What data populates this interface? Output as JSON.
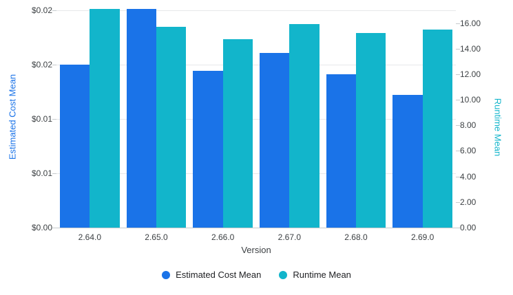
{
  "chart_data": {
    "type": "bar",
    "title": "",
    "xlabel": "Version",
    "categories": [
      "2.64.0",
      "2.65.0",
      "2.66.0",
      "2.67.0",
      "2.68.0",
      "2.69.0"
    ],
    "series": [
      {
        "name": "Estimated Cost Mean",
        "axis": "left",
        "color": "#1a73e8",
        "values": [
          0.015,
          0.0201,
          0.0144,
          0.0161,
          0.0141,
          0.0122
        ]
      },
      {
        "name": "Runtime Mean",
        "axis": "right",
        "color": "#12b5cb",
        "values": [
          17.1,
          15.7,
          14.75,
          15.95,
          15.2,
          15.5
        ]
      }
    ],
    "y_left": {
      "title": "Estimated Cost Mean",
      "color": "#1a73e8",
      "range": [
        0,
        0.02
      ],
      "tick_values": [
        0,
        0.005,
        0.01,
        0.015,
        0.02
      ],
      "tick_labels": [
        "$0.00",
        "$0.01",
        "$0.01",
        "$0.02",
        "$0.02"
      ]
    },
    "y_right": {
      "title": "Runtime Mean",
      "color": "#12b5cb",
      "range": [
        0,
        17
      ],
      "tick_values": [
        0,
        2,
        4,
        6,
        8,
        10,
        12,
        14,
        16
      ],
      "tick_labels": [
        "0.00",
        "2.00",
        "4.00",
        "6.00",
        "8.00",
        "10.00",
        "12.00",
        "14.00",
        "16.00"
      ]
    },
    "legend": {
      "position": "bottom",
      "items": [
        "Estimated Cost Mean",
        "Runtime Mean"
      ]
    },
    "grid": true,
    "background": "#ffffff"
  }
}
